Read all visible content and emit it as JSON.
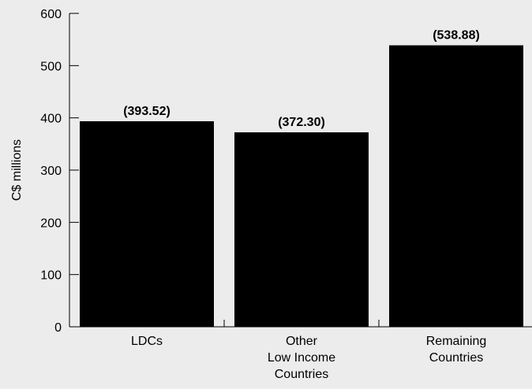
{
  "chart_data": {
    "type": "bar",
    "categories": [
      [
        "LDCs"
      ],
      [
        "Other",
        "Low Income",
        "Countries"
      ],
      [
        "Remaining",
        "Countries"
      ]
    ],
    "values": [
      393.52,
      372.3,
      538.88
    ],
    "data_labels": [
      "(393.52)",
      "(372.30)",
      "(538.88)"
    ],
    "ylabel": "C$ millions",
    "xlabel": "",
    "title": "",
    "ylim": [
      0,
      600
    ],
    "yticks": [
      "0",
      "100",
      "200",
      "300",
      "400",
      "500",
      "600"
    ],
    "ytick_values": [
      0,
      100,
      200,
      300,
      400,
      500,
      600
    ],
    "grid": false,
    "bar_color": "#000000",
    "background_color": "#ececec"
  }
}
